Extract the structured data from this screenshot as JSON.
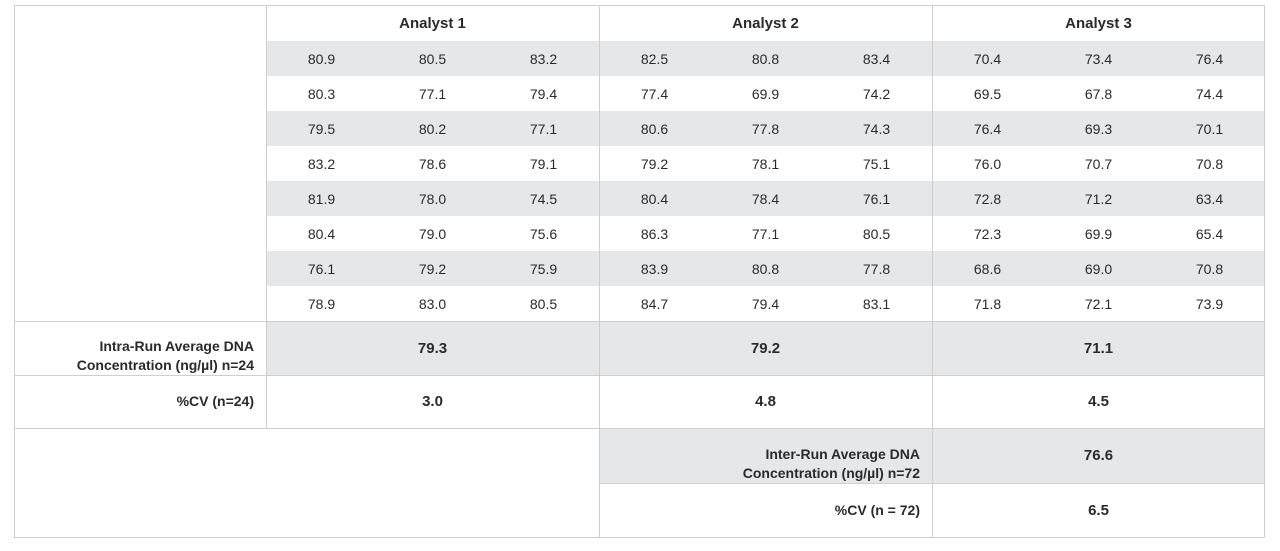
{
  "table": {
    "analysts": [
      "Analyst 1",
      "Analyst 2",
      "Analyst 3"
    ],
    "rows": [
      [
        "80.9",
        "80.5",
        "83.2",
        "82.5",
        "80.8",
        "83.4",
        "70.4",
        "73.4",
        "76.4"
      ],
      [
        "80.3",
        "77.1",
        "79.4",
        "77.4",
        "69.9",
        "74.2",
        "69.5",
        "67.8",
        "74.4"
      ],
      [
        "79.5",
        "80.2",
        "77.1",
        "80.6",
        "77.8",
        "74.3",
        "76.4",
        "69.3",
        "70.1"
      ],
      [
        "83.2",
        "78.6",
        "79.1",
        "79.2",
        "78.1",
        "75.1",
        "76.0",
        "70.7",
        "70.8"
      ],
      [
        "81.9",
        "78.0",
        "74.5",
        "80.4",
        "78.4",
        "76.1",
        "72.8",
        "71.2",
        "63.4"
      ],
      [
        "80.4",
        "79.0",
        "75.6",
        "86.3",
        "77.1",
        "80.5",
        "72.3",
        "69.9",
        "65.4"
      ],
      [
        "76.1",
        "79.2",
        "75.9",
        "83.9",
        "80.8",
        "77.8",
        "68.6",
        "69.0",
        "70.8"
      ],
      [
        "78.9",
        "83.0",
        "80.5",
        "84.7",
        "79.4",
        "83.1",
        "71.8",
        "72.1",
        "73.9"
      ]
    ],
    "intra_label_1": "Intra-Run Average DNA",
    "intra_label_2": "Concentration (ng/µl) n=24",
    "intra_values": [
      "79.3",
      "79.2",
      "71.1"
    ],
    "cv_label": "%CV (n=24)",
    "cv_values": [
      "3.0",
      "4.8",
      "4.5"
    ],
    "inter_label_1": "Inter-Run Average DNA",
    "inter_label_2": "Concentration (ng/µl) n=72",
    "inter_value": "76.6",
    "inter_cv_label": "%CV (n = 72)",
    "inter_cv_value": "6.5"
  }
}
